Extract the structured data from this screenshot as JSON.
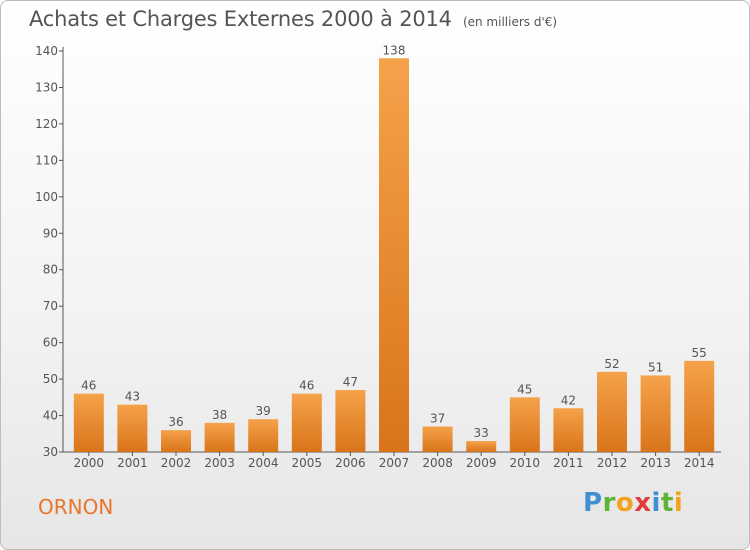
{
  "title": "Achats et Charges Externes 2000 à 2014",
  "subtitle": "(en milliers d'€)",
  "commune": "ORNON",
  "logo": {
    "letters": [
      "P",
      "r",
      "o",
      "x",
      "i",
      "t",
      "i"
    ],
    "colors": [
      "#3f8fd1",
      "#5fb336",
      "#f5a11e",
      "#e23b3b",
      "#3f8fd1",
      "#5fb336",
      "#f5a11e"
    ]
  },
  "colors": {
    "bar": "#f0922f",
    "bar_dark": "#d9741a",
    "text": "#555555",
    "accent": "#e8762d"
  },
  "chart_data": {
    "type": "bar",
    "categories": [
      "2000",
      "2001",
      "2002",
      "2003",
      "2004",
      "2005",
      "2006",
      "2007",
      "2008",
      "2009",
      "2010",
      "2011",
      "2012",
      "2013",
      "2014"
    ],
    "values": [
      46,
      43,
      36,
      38,
      39,
      46,
      47,
      138,
      37,
      33,
      45,
      42,
      52,
      51,
      55
    ],
    "ylim": [
      30,
      140
    ],
    "yticks": [
      30,
      40,
      50,
      60,
      70,
      80,
      90,
      100,
      110,
      120,
      130,
      140
    ],
    "grid": false
  }
}
